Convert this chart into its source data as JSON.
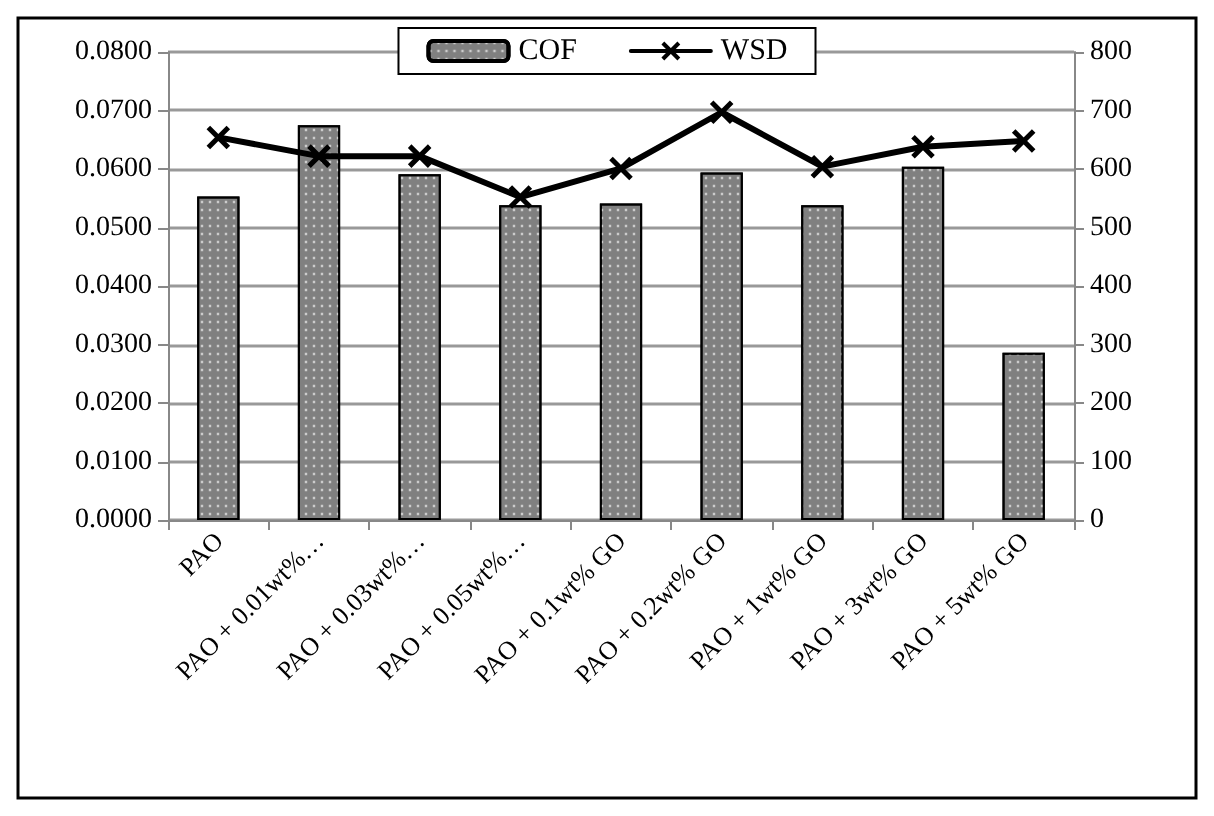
{
  "chart_data": {
    "type": "bar",
    "categories": [
      "PAO",
      "PAO + 0.01wt%…",
      "PAO + 0.03wt%…",
      "PAO + 0.05wt%…",
      "PAO + 0.1wt% GO",
      "PAO + 0.2wt% GO",
      "PAO + 1wt% GO",
      "PAO + 3wt% GO",
      "PAO + 5wt% GO"
    ],
    "series": [
      {
        "name": "COF",
        "color": "#808080",
        "values": [
          0.0553,
          0.0675,
          0.0591,
          0.0538,
          0.0541,
          0.0594,
          0.0538,
          0.0604,
          0.0286
        ]
      },
      {
        "name": "WSD",
        "type": "line",
        "axis": "y2",
        "color": "#000000",
        "marker": "cross",
        "values": [
          654,
          622,
          622,
          552,
          601,
          697,
          604,
          638,
          648
        ]
      }
    ],
    "ylim": [
      0,
      0.08
    ],
    "yticks": [
      {
        "value": 0,
        "label": "0.0000"
      },
      {
        "value": 0.01,
        "label": "0.0100"
      },
      {
        "value": 0.02,
        "label": "0.0200"
      },
      {
        "value": 0.03,
        "label": "0.0300"
      },
      {
        "value": 0.04,
        "label": "0.0400"
      },
      {
        "value": 0.05,
        "label": "0.0500"
      },
      {
        "value": 0.06,
        "label": "0.0600"
      },
      {
        "value": 0.07,
        "label": "0.0700"
      },
      {
        "value": 0.08,
        "label": "0.0800"
      }
    ],
    "y2lim": [
      0,
      800
    ],
    "y2ticks": [
      0,
      100,
      200,
      300,
      400,
      500,
      600,
      700,
      800
    ],
    "grid": "y",
    "legend": "top"
  }
}
